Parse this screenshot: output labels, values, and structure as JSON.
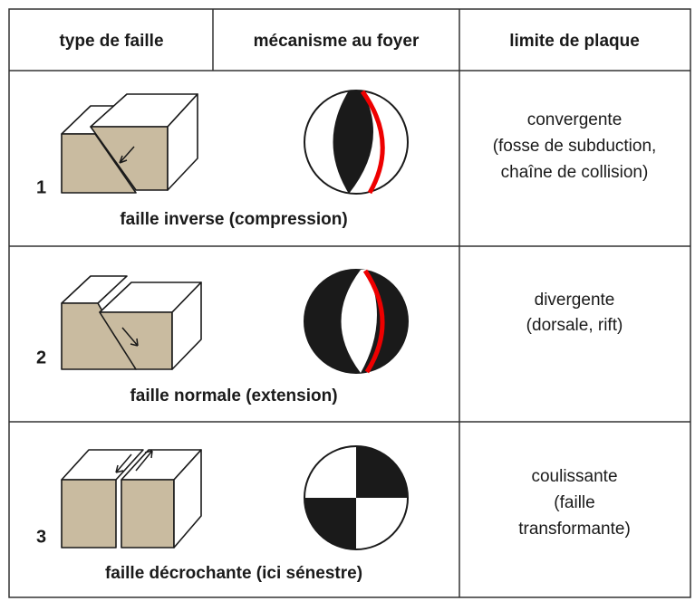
{
  "header": {
    "columns": [
      "type de faille",
      "mécanisme au foyer",
      "limite de plaque"
    ]
  },
  "rows": [
    {
      "number": "1",
      "fault": "faille inverse (compression)",
      "plate": [
        "convergente",
        "(fosse de subduction,",
        "chaîne de collision)"
      ]
    },
    {
      "number": "2",
      "fault": "faille normale (extension)",
      "plate": [
        "divergente",
        "(dorsale, rift)"
      ]
    },
    {
      "number": "3",
      "fault": "faille décrochante (ici sénestre)",
      "plate": [
        "coulissante",
        "(faille",
        "transformante)"
      ]
    }
  ]
}
